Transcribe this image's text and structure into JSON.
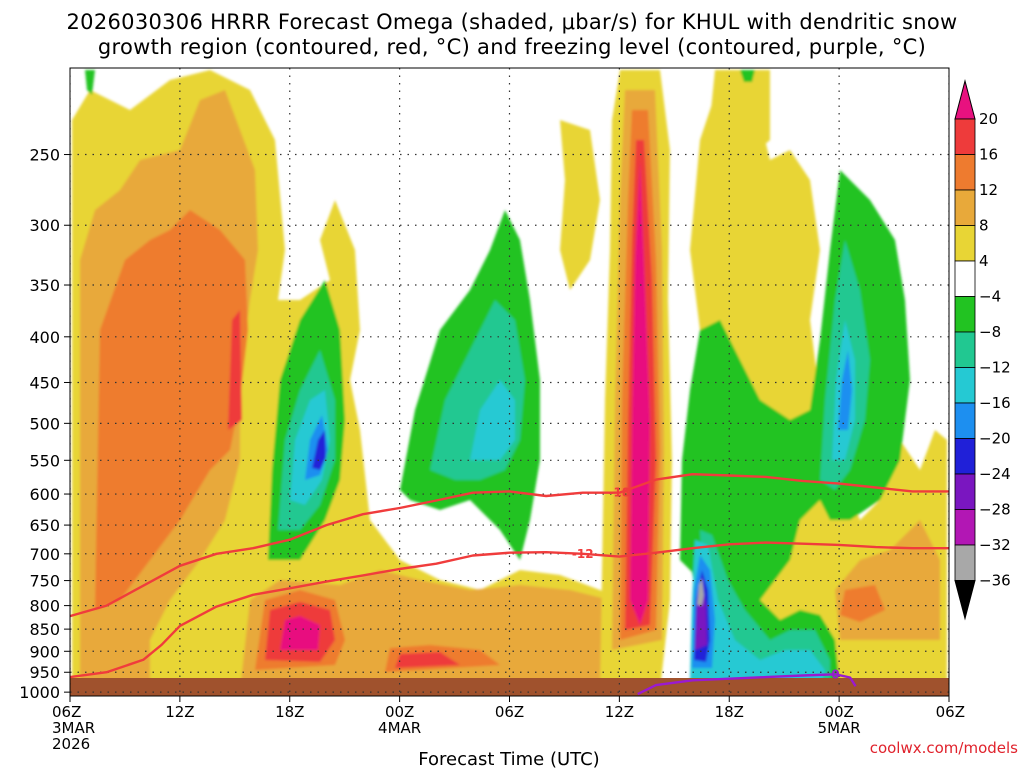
{
  "title_line1": "2026030306 HRRR Forecast Omega (shaded, μbar/s) for KHUL with dendritic snow",
  "title_line2": "growth region (contoured, red, °C) and freezing level (contoured, purple, °C)",
  "xlabel": "Forecast Time (UTC)",
  "credit": "coolwx.com/models",
  "colors": {
    "ground": "#a0522d",
    "contour_red": "#f03c3c",
    "contour_purple": "#9a1ad0"
  },
  "chart_data": {
    "type": "heatmap",
    "x_unit": "hours from 06Z 3MAR 2026",
    "xlim": [
      0,
      48
    ],
    "y_unit": "pressure (hPa), inverted log axis",
    "ylim": [
      1010,
      200
    ],
    "x_ticks": [
      {
        "h": 0,
        "label": "06Z",
        "sub1": "3MAR",
        "sub2": "2026"
      },
      {
        "h": 6,
        "label": "12Z",
        "sub1": "",
        "sub2": ""
      },
      {
        "h": 12,
        "label": "18Z",
        "sub1": "",
        "sub2": ""
      },
      {
        "h": 18,
        "label": "00Z",
        "sub1": "4MAR",
        "sub2": ""
      },
      {
        "h": 24,
        "label": "06Z",
        "sub1": "",
        "sub2": ""
      },
      {
        "h": 30,
        "label": "12Z",
        "sub1": "",
        "sub2": ""
      },
      {
        "h": 36,
        "label": "18Z",
        "sub1": "",
        "sub2": ""
      },
      {
        "h": 42,
        "label": "00Z",
        "sub1": "5MAR",
        "sub2": ""
      },
      {
        "h": 48,
        "label": "06Z",
        "sub1": "",
        "sub2": ""
      }
    ],
    "y_ticks": [
      250,
      300,
      350,
      400,
      450,
      500,
      550,
      600,
      650,
      700,
      750,
      800,
      850,
      900,
      950,
      1000
    ],
    "colorbar": {
      "levels": [
        "20",
        "16",
        "12",
        "8",
        "4",
        "−4",
        "−8",
        "−12",
        "−16",
        "−20",
        "−24",
        "−28",
        "−32",
        "−36"
      ],
      "colors": [
        "#e8117f",
        "#ee3b3b",
        "#ee7b2f",
        "#e8a93a",
        "#e8d535",
        "#ffffff",
        "#22c322",
        "#21c891",
        "#25c9d3",
        "#1d8ff0",
        "#2020d8",
        "#7a16c0",
        "#b217b4",
        "#a8a8a8",
        "#000000"
      ]
    },
    "omega_features": [
      {
        "name": "upward column 12Z 4MAR",
        "h": 31.0,
        "p_top": 230,
        "p_bot": 925,
        "peak": 20
      },
      {
        "name": "upward column 00Z 5MAR",
        "h": 42.0,
        "p_top": 330,
        "p_bot": 680,
        "peak": -16
      },
      {
        "name": "descent max 18Z 3MAR",
        "h": 12.5,
        "p_top": 400,
        "p_bot": 630,
        "peak": -20
      },
      {
        "name": "low-level descent 16Z 4MAR",
        "h": 34.0,
        "p_top": 650,
        "p_bot": 970,
        "peak": -32
      },
      {
        "name": "boundary layer ascent 18Z 3MAR",
        "h": 12.5,
        "p_top": 820,
        "p_bot": 950,
        "peak": 20
      }
    ],
    "contours": [
      {
        "label": "-18",
        "color": "#f03c3c",
        "points": [
          [
            0,
            822
          ],
          [
            2,
            800
          ],
          [
            4,
            760
          ],
          [
            6,
            722
          ],
          [
            8,
            700
          ],
          [
            10,
            690
          ],
          [
            12,
            675
          ],
          [
            14,
            650
          ],
          [
            16,
            632
          ],
          [
            18,
            622
          ],
          [
            20,
            610
          ],
          [
            22,
            598
          ],
          [
            24,
            596
          ],
          [
            26,
            603
          ],
          [
            28,
            598
          ],
          [
            30,
            598
          ],
          [
            32,
            578
          ],
          [
            34,
            570
          ],
          [
            36,
            572
          ],
          [
            38,
            574
          ],
          [
            40,
            580
          ],
          [
            42,
            584
          ],
          [
            44,
            590
          ],
          [
            46,
            596
          ],
          [
            48,
            596
          ]
        ]
      },
      {
        "label": "-12",
        "color": "#f03c3c",
        "points": [
          [
            0,
            962
          ],
          [
            2,
            950
          ],
          [
            4,
            920
          ],
          [
            5,
            885
          ],
          [
            6,
            843
          ],
          [
            8,
            802
          ],
          [
            10,
            778
          ],
          [
            12,
            765
          ],
          [
            14,
            752
          ],
          [
            16,
            740
          ],
          [
            18,
            728
          ],
          [
            20,
            718
          ],
          [
            22,
            703
          ],
          [
            24,
            698
          ],
          [
            26,
            697
          ],
          [
            28,
            700
          ],
          [
            30,
            705
          ],
          [
            32,
            698
          ],
          [
            34,
            690
          ],
          [
            36,
            683
          ],
          [
            38,
            680
          ],
          [
            40,
            682
          ],
          [
            42,
            684
          ],
          [
            44,
            688
          ],
          [
            46,
            690
          ],
          [
            48,
            690
          ]
        ]
      },
      {
        "label": "0",
        "color": "#9a1ad0",
        "points": [
          [
            31,
            1005
          ],
          [
            32,
            982
          ],
          [
            34,
            970
          ],
          [
            36,
            966
          ],
          [
            38,
            962
          ],
          [
            40,
            958
          ],
          [
            41.8,
            955
          ],
          [
            42.6,
            963
          ],
          [
            42.9,
            985
          ]
        ]
      }
    ]
  }
}
